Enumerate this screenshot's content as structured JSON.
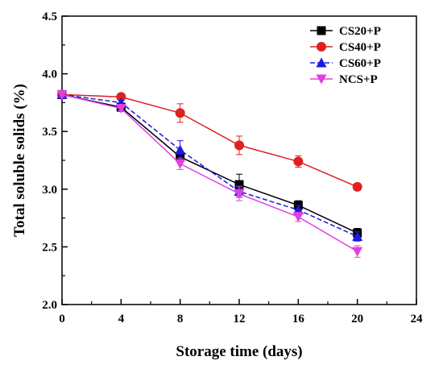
{
  "chart_data": {
    "type": "line",
    "title": "",
    "xlabel": "Storage time (days)",
    "ylabel": "Total soluble solids (%)",
    "xlim": [
      0,
      24
    ],
    "ylim": [
      2.0,
      4.5
    ],
    "x_ticks": [
      0,
      4,
      8,
      12,
      16,
      20,
      24
    ],
    "y_ticks": [
      2.0,
      2.5,
      3.0,
      3.5,
      4.0,
      4.5
    ],
    "grid": false,
    "legend_position": "top-right",
    "x": [
      0,
      4,
      8,
      12,
      16,
      20
    ],
    "series": [
      {
        "name": "CS20+P",
        "color": "#000000",
        "marker": "square",
        "line": "solid",
        "values": [
          3.82,
          3.71,
          3.28,
          3.04,
          2.86,
          2.62
        ],
        "errors": [
          0.02,
          0.02,
          0.05,
          0.09,
          0.04,
          0.04
        ]
      },
      {
        "name": "CS40+P",
        "color": "#e02020",
        "marker": "circle",
        "line": "solid",
        "values": [
          3.82,
          3.8,
          3.66,
          3.38,
          3.24,
          3.02
        ],
        "errors": [
          0.02,
          0.02,
          0.08,
          0.08,
          0.05,
          0.03
        ]
      },
      {
        "name": "CS60+P",
        "color": "#1a1ae0",
        "marker": "triangle-up",
        "line": "dash",
        "values": [
          3.82,
          3.75,
          3.34,
          2.98,
          2.82,
          2.59
        ],
        "errors": [
          0.02,
          0.02,
          0.08,
          0.05,
          0.04,
          0.04
        ]
      },
      {
        "name": "NCS+P",
        "color": "#e040e0",
        "marker": "triangle-down",
        "line": "solid",
        "values": [
          3.82,
          3.7,
          3.22,
          2.96,
          2.76,
          2.46
        ],
        "errors": [
          0.02,
          0.02,
          0.05,
          0.06,
          0.04,
          0.05
        ]
      }
    ]
  }
}
